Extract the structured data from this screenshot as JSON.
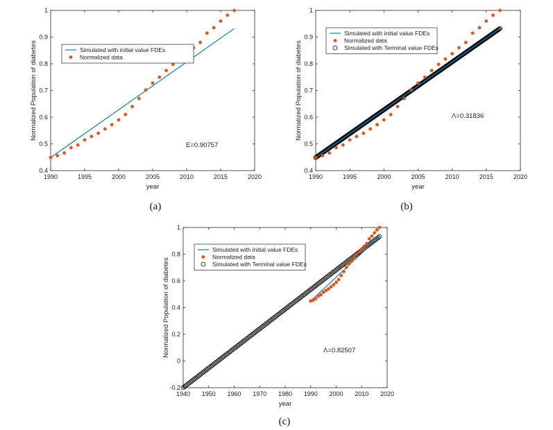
{
  "colors": {
    "simulated_initial": "#0072BD",
    "normalized": "#D95319",
    "terminal": "#000000"
  },
  "normalized_series": {
    "x": [
      1990,
      1991,
      1992,
      1993,
      1994,
      1995,
      1996,
      1997,
      1998,
      1999,
      2000,
      2001,
      2002,
      2003,
      2004,
      2005,
      2006,
      2007,
      2008,
      2009,
      2010,
      2011,
      2012,
      2013,
      2014,
      2015,
      2016,
      2017
    ],
    "y": [
      0.449,
      0.456,
      0.466,
      0.486,
      0.496,
      0.515,
      0.528,
      0.54,
      0.556,
      0.572,
      0.59,
      0.61,
      0.64,
      0.67,
      0.702,
      0.728,
      0.75,
      0.775,
      0.798,
      0.818,
      0.838,
      0.86,
      0.88,
      0.915,
      0.935,
      0.96,
      0.982,
      1.0
    ]
  },
  "chart_data": [
    {
      "type": "line",
      "caption": "(a)",
      "xlabel": "year",
      "ylabel": "Normalized Population of diabetes",
      "xlim": [
        1990,
        2020
      ],
      "ylim": [
        0.4,
        1
      ],
      "xticks": [
        "1990",
        "1995",
        "2000",
        "2005",
        "2010",
        "2015",
        "2020"
      ],
      "yticks": [
        "0.4",
        "0.5",
        "0.6",
        "0.7",
        "0.8",
        "0.9",
        "1"
      ],
      "legend": [
        "Simulated with initial value FDEs",
        "Normalized data"
      ],
      "annotation": "E=0.90757",
      "series": [
        {
          "name": "Simulated with initial value FDEs",
          "style": "line",
          "x": [
            1990,
            2017
          ],
          "y": [
            0.449,
            0.932
          ]
        },
        {
          "name": "Normalized data",
          "style": "star",
          "ref": "normalized_series"
        }
      ]
    },
    {
      "type": "line",
      "caption": "(b)",
      "xlabel": "year",
      "ylabel": "Normalized Population of diabetes",
      "xlim": [
        1990,
        2020
      ],
      "ylim": [
        0.4,
        1
      ],
      "xticks": [
        "1990",
        "1995",
        "2000",
        "2005",
        "2010",
        "2015",
        "2020"
      ],
      "yticks": [
        "0.4",
        "0.5",
        "0.6",
        "0.7",
        "0.8",
        "0.9",
        "1"
      ],
      "legend": [
        "Simulated with initial value FDEs",
        "Normalized data",
        "Simulated with Terminal value FDEs"
      ],
      "annotation": "Λ=0.31836",
      "series": [
        {
          "name": "Simulated with initial value FDEs",
          "style": "line",
          "x": [
            1990,
            2017
          ],
          "y": [
            0.449,
            0.932
          ]
        },
        {
          "name": "Normalized data",
          "style": "star",
          "ref": "normalized_series"
        },
        {
          "name": "Simulated with Terminal value FDEs",
          "style": "circle",
          "x": [
            1990,
            2017
          ],
          "y": [
            0.449,
            0.932
          ],
          "step": 0.1
        }
      ]
    },
    {
      "type": "line",
      "caption": "(c)",
      "xlabel": "year",
      "ylabel": "Normalized Population of diabetes",
      "xlim": [
        1940,
        2020
      ],
      "ylim": [
        -0.2,
        1
      ],
      "xticks": [
        "1940",
        "1950",
        "1960",
        "1970",
        "1980",
        "1990",
        "2000",
        "2010",
        "2020"
      ],
      "yticks": [
        "-0.2",
        "0",
        "0.2",
        "0.4",
        "0.6",
        "0.8",
        "1"
      ],
      "legend": [
        "Simulated with initial value FDEs",
        "Normalized data",
        "Simulated with Terminal value FDEs"
      ],
      "annotation": "Λ=0.82507",
      "series": [
        {
          "name": "Simulated with initial value FDEs",
          "style": "line",
          "x": [
            1990,
            2017
          ],
          "y": [
            0.449,
            0.932
          ]
        },
        {
          "name": "Normalized data",
          "style": "star",
          "ref": "normalized_series"
        },
        {
          "name": "Simulated with Terminal value FDEs",
          "style": "circle",
          "x": [
            1940,
            2017
          ],
          "y": [
            -0.2,
            0.932
          ],
          "step": 0.5
        }
      ]
    }
  ]
}
